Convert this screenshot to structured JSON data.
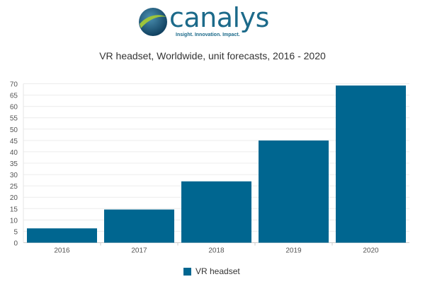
{
  "logo": {
    "text": "canalys",
    "tagline": "Insight. Innovation. Impact."
  },
  "chart_data": {
    "type": "bar",
    "title": "VR headset, Worldwide, unit forecasts, 2016 - 2020",
    "categories": [
      "2016",
      "2017",
      "2018",
      "2019",
      "2020"
    ],
    "series": [
      {
        "name": "VR headset",
        "values": [
          6.3,
          14.6,
          27.0,
          45.0,
          69.2
        ],
        "color": "#006690"
      }
    ],
    "xlabel": "",
    "ylabel": "",
    "ylim": [
      0,
      70
    ],
    "yticks": [
      0,
      5,
      10,
      15,
      20,
      25,
      30,
      35,
      40,
      45,
      50,
      55,
      60,
      65,
      70
    ],
    "grid": true,
    "legend": "bottom"
  }
}
